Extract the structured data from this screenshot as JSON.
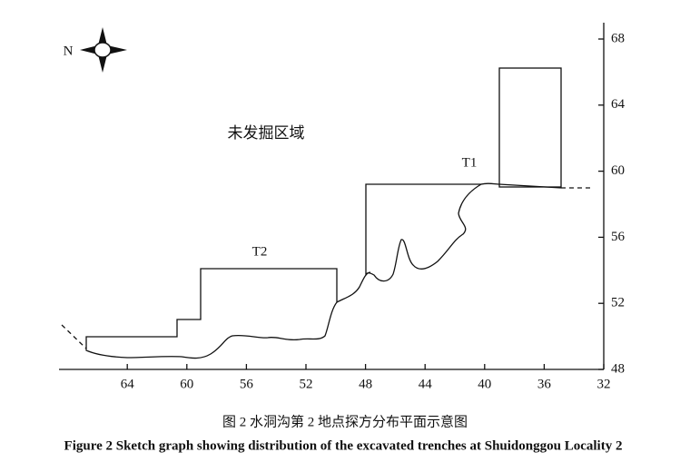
{
  "compass": {
    "label": "N"
  },
  "regions": {
    "unexcavated": "未发掘区域",
    "trench1": "T1",
    "trench2": "T2"
  },
  "axes": {
    "xticks": [
      64,
      60,
      56,
      52,
      48,
      44,
      40,
      36,
      32
    ],
    "yticks": [
      68,
      64,
      60,
      56,
      52,
      48
    ]
  },
  "caption": {
    "chinese": "图 2 水洞沟第 2 地点探方分布平面示意图",
    "english": "Figure 2  Sketch graph showing distribution of the excavated trenches at Shuidonggou Locality 2"
  }
}
